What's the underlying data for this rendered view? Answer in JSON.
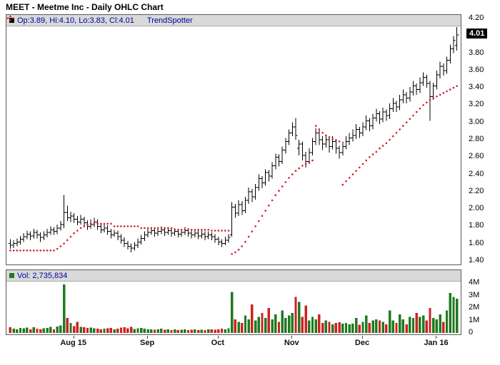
{
  "colors": {
    "bar": "#000000",
    "trend_dot": "#cc2233",
    "up_volume": "#1f7a1f",
    "down_volume": "#cc2222",
    "legend_text": "#0000a0",
    "legend_bg": "#d9d9d9",
    "last_price_bg": "#000000",
    "last_price_fg": "#ffffff"
  },
  "chart_data": {
    "type": "ohlc",
    "title": "MEET - Meetme Inc - Daily OHLC Chart",
    "legend": {
      "ohlc": "Op:3.89, Hi:4.10, Lo:3.83, Cl:4.01",
      "trend": "TrendSpotter",
      "volume": "Vol: 2,735,834"
    },
    "last_price": "4.01",
    "y_axis": {
      "range": [
        1.4,
        4.2
      ],
      "ticks": [
        "4.20",
        "4.00",
        "3.80",
        "3.60",
        "3.40",
        "3.20",
        "3.00",
        "2.80",
        "2.60",
        "2.40",
        "2.20",
        "2.00",
        "1.80",
        "1.60",
        "1.40"
      ]
    },
    "volume_axis": {
      "range_millions": [
        0,
        4
      ],
      "ticks": [
        "4M",
        "3M",
        "2M",
        "1M",
        "0"
      ]
    },
    "x_axis": {
      "labels": [
        {
          "text": "Aug 15",
          "bar_index": 19
        },
        {
          "text": "Sep",
          "bar_index": 41
        },
        {
          "text": "Oct",
          "bar_index": 62
        },
        {
          "text": "Nov",
          "bar_index": 84
        },
        {
          "text": "Dec",
          "bar_index": 105
        },
        {
          "text": "Jan 16",
          "bar_index": 127
        }
      ]
    },
    "series": {
      "bars_format": [
        "open",
        "high",
        "low",
        "close",
        "volume_millions"
      ],
      "bars": [
        [
          1.6,
          1.65,
          1.54,
          1.58,
          0.45
        ],
        [
          1.58,
          1.64,
          1.55,
          1.6,
          0.35
        ],
        [
          1.6,
          1.66,
          1.57,
          1.62,
          0.3
        ],
        [
          1.62,
          1.69,
          1.59,
          1.65,
          0.4
        ],
        [
          1.65,
          1.72,
          1.62,
          1.68,
          0.38
        ],
        [
          1.68,
          1.75,
          1.65,
          1.71,
          0.42
        ],
        [
          1.71,
          1.74,
          1.64,
          1.69,
          0.3
        ],
        [
          1.69,
          1.77,
          1.66,
          1.73,
          0.45
        ],
        [
          1.73,
          1.76,
          1.66,
          1.7,
          0.33
        ],
        [
          1.7,
          1.73,
          1.62,
          1.67,
          0.28
        ],
        [
          1.67,
          1.74,
          1.64,
          1.7,
          0.36
        ],
        [
          1.7,
          1.77,
          1.67,
          1.73,
          0.4
        ],
        [
          1.73,
          1.8,
          1.7,
          1.76,
          0.48
        ],
        [
          1.76,
          1.79,
          1.7,
          1.74,
          0.3
        ],
        [
          1.74,
          1.82,
          1.71,
          1.78,
          0.52
        ],
        [
          1.78,
          1.86,
          1.75,
          1.82,
          0.6
        ],
        [
          1.82,
          2.16,
          1.78,
          1.96,
          3.9
        ],
        [
          1.96,
          2.04,
          1.86,
          1.9,
          1.2
        ],
        [
          1.9,
          1.97,
          1.85,
          1.92,
          0.8
        ],
        [
          1.92,
          1.95,
          1.84,
          1.88,
          0.55
        ],
        [
          1.88,
          1.92,
          1.81,
          1.85,
          0.9
        ],
        [
          1.85,
          1.93,
          1.82,
          1.88,
          0.5
        ],
        [
          1.88,
          1.91,
          1.8,
          1.84,
          0.45
        ],
        [
          1.84,
          1.87,
          1.76,
          1.8,
          0.4
        ],
        [
          1.8,
          1.88,
          1.77,
          1.82,
          0.42
        ],
        [
          1.82,
          1.9,
          1.79,
          1.85,
          0.38
        ],
        [
          1.85,
          1.88,
          1.76,
          1.8,
          0.35
        ],
        [
          1.8,
          1.83,
          1.72,
          1.76,
          0.3
        ],
        [
          1.76,
          1.83,
          1.73,
          1.78,
          0.33
        ],
        [
          1.78,
          1.81,
          1.7,
          1.74,
          0.36
        ],
        [
          1.74,
          1.77,
          1.66,
          1.7,
          0.4
        ],
        [
          1.7,
          1.76,
          1.68,
          1.72,
          0.28
        ],
        [
          1.72,
          1.75,
          1.64,
          1.68,
          0.35
        ],
        [
          1.68,
          1.71,
          1.6,
          1.64,
          0.42
        ],
        [
          1.64,
          1.67,
          1.56,
          1.6,
          0.45
        ],
        [
          1.6,
          1.63,
          1.53,
          1.57,
          0.38
        ],
        [
          1.57,
          1.6,
          1.5,
          1.55,
          0.5
        ],
        [
          1.55,
          1.62,
          1.52,
          1.58,
          0.32
        ],
        [
          1.58,
          1.66,
          1.55,
          1.62,
          0.36
        ],
        [
          1.62,
          1.7,
          1.59,
          1.66,
          0.4
        ],
        [
          1.66,
          1.74,
          1.63,
          1.7,
          0.35
        ],
        [
          1.7,
          1.77,
          1.67,
          1.73,
          0.3
        ],
        [
          1.73,
          1.79,
          1.7,
          1.75,
          0.28
        ],
        [
          1.75,
          1.78,
          1.68,
          1.72,
          0.25
        ],
        [
          1.72,
          1.78,
          1.69,
          1.74,
          0.3
        ],
        [
          1.74,
          1.8,
          1.71,
          1.76,
          0.33
        ],
        [
          1.76,
          1.79,
          1.69,
          1.73,
          0.26
        ],
        [
          1.73,
          1.79,
          1.7,
          1.75,
          0.3
        ],
        [
          1.75,
          1.78,
          1.68,
          1.72,
          0.24
        ],
        [
          1.72,
          1.78,
          1.69,
          1.74,
          0.28
        ],
        [
          1.74,
          1.77,
          1.67,
          1.71,
          0.22
        ],
        [
          1.71,
          1.77,
          1.68,
          1.73,
          0.26
        ],
        [
          1.73,
          1.79,
          1.7,
          1.75,
          0.3
        ],
        [
          1.75,
          1.78,
          1.68,
          1.72,
          0.24
        ],
        [
          1.72,
          1.75,
          1.66,
          1.7,
          0.26
        ],
        [
          1.7,
          1.76,
          1.67,
          1.72,
          0.28
        ],
        [
          1.72,
          1.75,
          1.65,
          1.69,
          0.22
        ],
        [
          1.69,
          1.75,
          1.66,
          1.71,
          0.25
        ],
        [
          1.71,
          1.74,
          1.64,
          1.68,
          0.24
        ],
        [
          1.68,
          1.74,
          1.65,
          1.7,
          0.28
        ],
        [
          1.7,
          1.73,
          1.64,
          1.68,
          0.3
        ],
        [
          1.68,
          1.71,
          1.61,
          1.65,
          0.26
        ],
        [
          1.65,
          1.68,
          1.58,
          1.62,
          0.3
        ],
        [
          1.62,
          1.65,
          1.56,
          1.6,
          0.34
        ],
        [
          1.6,
          1.68,
          1.58,
          1.64,
          0.3
        ],
        [
          1.64,
          1.71,
          1.61,
          1.67,
          0.36
        ],
        [
          1.7,
          2.08,
          1.68,
          2.02,
          3.3
        ],
        [
          2.02,
          2.06,
          1.9,
          1.95,
          1.1
        ],
        [
          1.95,
          2.1,
          1.92,
          2.05,
          0.9
        ],
        [
          2.05,
          2.09,
          1.93,
          1.98,
          0.8
        ],
        [
          1.98,
          2.14,
          1.95,
          2.1,
          1.4
        ],
        [
          2.1,
          2.25,
          2.06,
          2.2,
          1.1
        ],
        [
          2.2,
          2.23,
          2.08,
          2.14,
          2.3
        ],
        [
          2.14,
          2.29,
          2.11,
          2.25,
          1.0
        ],
        [
          2.25,
          2.4,
          2.21,
          2.35,
          1.3
        ],
        [
          2.35,
          2.38,
          2.24,
          2.3,
          1.6
        ],
        [
          2.3,
          2.46,
          2.27,
          2.42,
          1.2
        ],
        [
          2.42,
          2.45,
          2.32,
          2.38,
          2.0
        ],
        [
          2.38,
          2.54,
          2.35,
          2.5,
          1.1
        ],
        [
          2.5,
          2.64,
          2.46,
          2.6,
          1.5
        ],
        [
          2.6,
          2.63,
          2.49,
          2.55,
          0.9
        ],
        [
          2.55,
          2.72,
          2.52,
          2.68,
          1.8
        ],
        [
          2.68,
          2.82,
          2.64,
          2.78,
          1.2
        ],
        [
          2.78,
          2.92,
          2.74,
          2.88,
          1.4
        ],
        [
          2.88,
          3.0,
          2.84,
          2.95,
          1.6
        ],
        [
          2.95,
          3.05,
          2.8,
          2.85,
          2.9
        ],
        [
          2.7,
          2.8,
          2.62,
          2.75,
          2.5
        ],
        [
          2.75,
          2.78,
          2.56,
          2.62,
          1.3
        ],
        [
          2.62,
          2.66,
          2.48,
          2.55,
          2.2
        ],
        [
          2.55,
          2.7,
          2.52,
          2.65,
          1.0
        ],
        [
          2.65,
          2.82,
          2.62,
          2.78,
          1.3
        ],
        [
          2.78,
          2.93,
          2.74,
          2.88,
          1.1
        ],
        [
          2.88,
          2.91,
          2.74,
          2.8,
          1.5
        ],
        [
          2.8,
          2.84,
          2.68,
          2.75,
          0.8
        ],
        [
          2.75,
          2.85,
          2.71,
          2.8,
          1.0
        ],
        [
          2.8,
          2.83,
          2.65,
          2.72,
          0.9
        ],
        [
          2.72,
          2.84,
          2.69,
          2.78,
          0.7
        ],
        [
          2.78,
          2.81,
          2.64,
          2.7,
          0.8
        ],
        [
          2.7,
          2.73,
          2.58,
          2.65,
          0.85
        ],
        [
          2.65,
          2.78,
          2.62,
          2.72,
          0.75
        ],
        [
          2.72,
          2.84,
          2.69,
          2.78,
          0.8
        ],
        [
          2.78,
          2.88,
          2.74,
          2.82,
          0.7
        ],
        [
          2.82,
          2.92,
          2.78,
          2.85,
          0.75
        ],
        [
          2.85,
          2.98,
          2.81,
          2.92,
          1.2
        ],
        [
          2.92,
          2.95,
          2.82,
          2.88,
          0.65
        ],
        [
          2.88,
          3.0,
          2.84,
          2.95,
          0.9
        ],
        [
          2.95,
          3.08,
          2.91,
          3.02,
          1.4
        ],
        [
          3.02,
          3.05,
          2.9,
          2.96,
          0.8
        ],
        [
          2.96,
          3.1,
          2.92,
          3.05,
          1.0
        ],
        [
          3.05,
          3.16,
          3.01,
          3.1,
          1.1
        ],
        [
          3.1,
          3.13,
          2.98,
          3.04,
          1.0
        ],
        [
          3.04,
          3.17,
          3.0,
          3.12,
          0.9
        ],
        [
          3.12,
          3.15,
          3.02,
          3.08,
          0.7
        ],
        [
          3.08,
          3.22,
          3.04,
          3.16,
          1.8
        ],
        [
          3.16,
          3.28,
          3.12,
          3.22,
          1.0
        ],
        [
          3.22,
          3.25,
          3.12,
          3.18,
          0.8
        ],
        [
          3.18,
          3.32,
          3.14,
          3.26,
          1.5
        ],
        [
          3.26,
          3.38,
          3.22,
          3.32,
          1.1
        ],
        [
          3.32,
          3.35,
          3.22,
          3.28,
          0.7
        ],
        [
          3.28,
          3.41,
          3.24,
          3.35,
          1.3
        ],
        [
          3.35,
          3.48,
          3.31,
          3.42,
          1.2
        ],
        [
          3.42,
          3.45,
          3.32,
          3.38,
          1.6
        ],
        [
          3.38,
          3.52,
          3.34,
          3.46,
          1.3
        ],
        [
          3.46,
          3.58,
          3.42,
          3.52,
          1.4
        ],
        [
          3.52,
          3.55,
          3.4,
          3.45,
          1.0
        ],
        [
          3.45,
          3.48,
          3.02,
          3.3,
          2.0
        ],
        [
          3.3,
          3.46,
          3.26,
          3.42,
          1.2
        ],
        [
          3.42,
          3.6,
          3.38,
          3.55,
          1.1
        ],
        [
          3.55,
          3.7,
          3.51,
          3.65,
          1.5
        ],
        [
          3.65,
          3.68,
          3.54,
          3.6,
          0.9
        ],
        [
          3.6,
          3.76,
          3.56,
          3.72,
          1.8
        ],
        [
          3.72,
          3.9,
          3.68,
          3.85,
          3.2
        ],
        [
          3.85,
          4.0,
          3.8,
          3.95,
          2.9
        ],
        [
          3.89,
          4.1,
          3.83,
          4.01,
          2.74
        ]
      ],
      "trendspotter": [
        1.52,
        1.52,
        1.52,
        1.52,
        1.52,
        1.52,
        1.52,
        1.52,
        1.52,
        1.52,
        1.52,
        1.52,
        1.52,
        1.52,
        1.54,
        1.57,
        1.6,
        1.64,
        1.68,
        1.72,
        1.75,
        1.78,
        1.8,
        1.82,
        1.83,
        1.83,
        1.83,
        1.83,
        1.83,
        1.83,
        1.83,
        1.8,
        1.8,
        1.8,
        1.8,
        1.8,
        1.8,
        1.8,
        1.8,
        1.78,
        1.78,
        1.78,
        1.78,
        1.78,
        1.78,
        1.78,
        1.78,
        1.78,
        1.78,
        1.76,
        1.76,
        1.76,
        1.76,
        1.76,
        1.76,
        1.76,
        1.76,
        1.76,
        1.76,
        1.76,
        1.75,
        1.75,
        1.75,
        1.75,
        1.75,
        1.75,
        1.48,
        1.5,
        1.53,
        1.57,
        1.62,
        1.68,
        1.74,
        1.8,
        1.86,
        1.92,
        1.98,
        2.04,
        2.1,
        2.16,
        2.21,
        2.26,
        2.31,
        2.36,
        2.4,
        2.44,
        2.47,
        2.5,
        2.52,
        2.54,
        2.56,
        2.96,
        2.92,
        2.88,
        2.85,
        2.83,
        2.81,
        2.79,
        2.78,
        2.28,
        2.32,
        2.36,
        2.4,
        2.44,
        2.48,
        2.52,
        2.56,
        2.6,
        2.63,
        2.66,
        2.7,
        2.73,
        2.76,
        2.8,
        2.84,
        2.88,
        2.92,
        2.96,
        3.0,
        3.04,
        3.08,
        3.12,
        3.16,
        3.2,
        3.23,
        3.26,
        3.28,
        3.3,
        3.32,
        3.34,
        3.36,
        3.38,
        3.4,
        3.42
      ]
    }
  }
}
